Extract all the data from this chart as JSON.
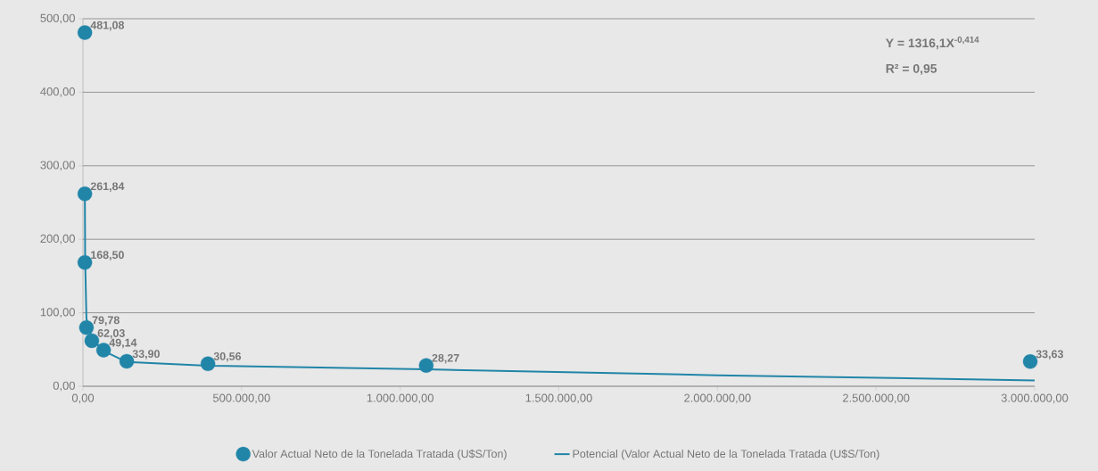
{
  "chart_data": {
    "type": "scatter",
    "xlim": [
      0,
      3000000
    ],
    "ylim": [
      0,
      500
    ],
    "xticks": [
      {
        "value": 0,
        "label": "0,00"
      },
      {
        "value": 500000,
        "label": "500.000,00"
      },
      {
        "value": 1000000,
        "label": "1.000.000,00"
      },
      {
        "value": 1500000,
        "label": "1.500.000,00"
      },
      {
        "value": 2000000,
        "label": "2.000.000,00"
      },
      {
        "value": 2500000,
        "label": "2.500.000,00"
      },
      {
        "value": 3000000,
        "label": "3.000.000,00"
      }
    ],
    "yticks": [
      {
        "value": 0,
        "label": "0,00"
      },
      {
        "value": 100,
        "label": "100,00"
      },
      {
        "value": 200,
        "label": "200,00"
      },
      {
        "value": 300,
        "label": "300,00"
      },
      {
        "value": 400,
        "label": "400,00"
      },
      {
        "value": 500,
        "label": "500,00"
      }
    ],
    "grid": "y",
    "legend": "bottom",
    "annotations": [
      "Y = 1316,1X$^{-0,414}$",
      "R² = 0,95"
    ],
    "series": [
      {
        "name": "Valor Actual Neto de la Tonelada Tratada (U$S/Ton)",
        "marker": "circle",
        "color": "#2185a8",
        "x": [
          6000,
          6000,
          6000,
          11000,
          28000,
          65000,
          138000,
          394000,
          1082000,
          2986000
        ],
        "values": [
          481.08,
          261.84,
          168.5,
          79.78,
          62.03,
          49.14,
          33.9,
          30.56,
          28.27,
          33.63
        ],
        "value_labels": [
          "481,08",
          "261,84",
          "168,50",
          "79,78",
          "62,03",
          "49,14",
          "33,90",
          "30,56",
          "28,27",
          "33,63"
        ]
      },
      {
        "name": "Potencial (Valor Actual Neto de la Tonelada Tratada (U$S/Ton)",
        "type": "line",
        "marker": "none",
        "color": "#2185a8",
        "x": [
          6000,
          7000,
          11000,
          28000,
          65000,
          138000,
          394000,
          1082000,
          2000000,
          3000000
        ],
        "values": [
          262,
          170,
          92,
          65,
          48,
          33,
          28,
          23,
          15,
          8
        ]
      }
    ]
  }
}
